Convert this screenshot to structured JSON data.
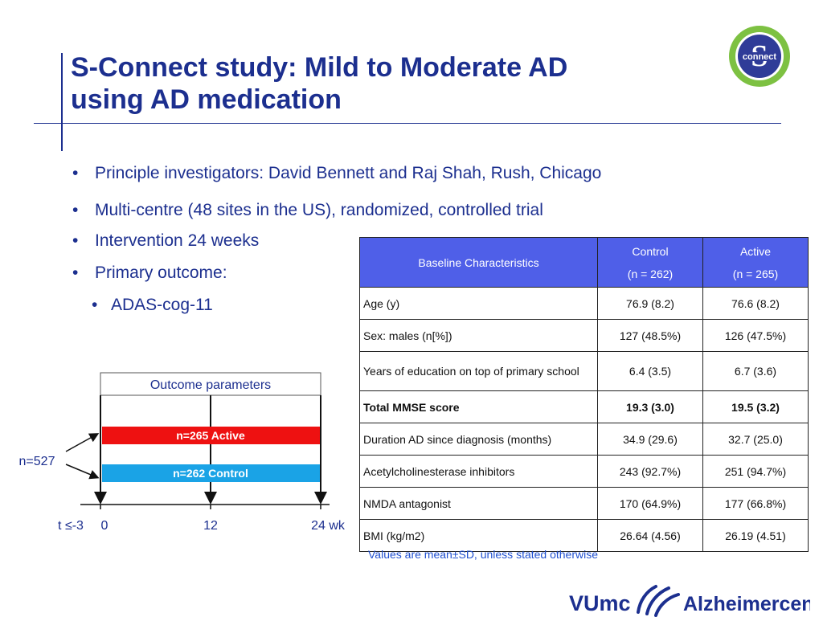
{
  "header": {
    "title_line1": "S-Connect study: Mild to Moderate AD",
    "title_line2": "using AD medication",
    "logo_text": "connect",
    "logo_letter": "S"
  },
  "bullets": {
    "investigators": "Principle investigators: David Bennett and Raj Shah, Rush, Chicago",
    "design": "Multi-centre (48 sites in the US), randomized, controlled trial",
    "intervention": "Intervention 24 weeks",
    "outcome": "Primary outcome:",
    "outcome_sub": "ADAS-cog-11"
  },
  "diagram": {
    "box_title": "Outcome parameters",
    "active_bar": "n=265 Active",
    "control_bar": "n=262 Control",
    "total": "n=527",
    "ticks": [
      "t ≤-3",
      "0",
      "12",
      "24 wk"
    ],
    "active_color": "#ee1111",
    "control_color": "#1aa3e6"
  },
  "table": {
    "header": {
      "characteristics": "Baseline Characteristics",
      "control_label": "Control",
      "control_n": "(n = 262)",
      "active_label": "Active",
      "active_n": "(n = 265)"
    },
    "rows": [
      {
        "label": "Age (y)",
        "control": "76.9 (8.2)",
        "active": "76.6 (8.2)"
      },
      {
        "label": "Sex: males (n[%])",
        "control": "127 (48.5%)",
        "active": "126 (47.5%)"
      },
      {
        "label": "Years of education on top of primary school",
        "control": "6.4 (3.5)",
        "active": "6.7 (3.6)"
      },
      {
        "label": "Total MMSE score",
        "control": "19.3 (3.0)",
        "active": "19.5 (3.2)"
      },
      {
        "label": "Duration AD since diagnosis (months)",
        "control": "34.9 (29.6)",
        "active": "32.7 (25.0)"
      },
      {
        "label": "Acetylcholinesterase inhibitors",
        "control": "243 (92.7%)",
        "active": "251 (94.7%)"
      },
      {
        "label": "NMDA antagonist",
        "control": "170 (64.9%)",
        "active": "177 (66.8%)"
      },
      {
        "label": "BMI (kg/m2)",
        "control": "26.64 (4.56)",
        "active": "26.19 (4.51)"
      }
    ],
    "note": "Values are mean±SD, unless stated otherwise",
    "header_color": "#4f5fe8"
  },
  "footer": {
    "vumc": "VUmc",
    "center": "Alzheimercentrum"
  }
}
